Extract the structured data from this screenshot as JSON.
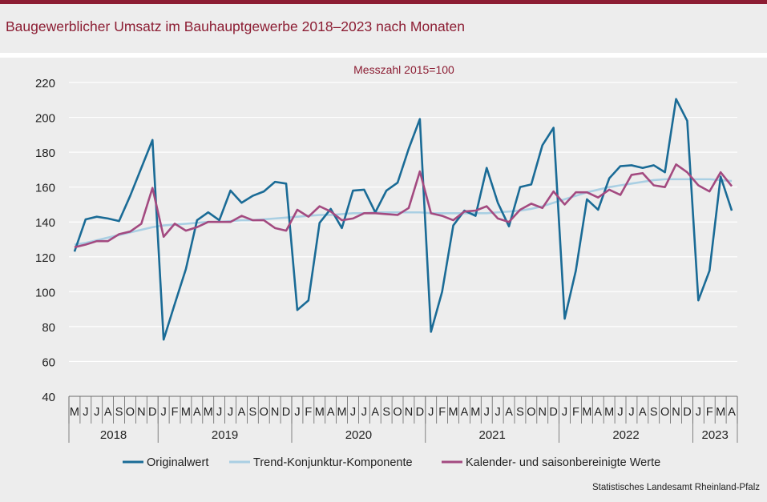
{
  "title": "Baugewerblicher Umsatz im Bauhauptgewerbe 2018–2023 nach Monaten",
  "source": "Statistisches Landesamt Rheinland-Pfalz",
  "colors": {
    "accent": "#8c1d33",
    "series": [
      "#1a6b96",
      "#a9cfe3",
      "#a34a80"
    ]
  },
  "chart_data": {
    "type": "line",
    "subtitle": "Messzahl 2015=100",
    "xlabel": "",
    "ylabel": "",
    "ylim": [
      40,
      220
    ],
    "yticks": [
      40,
      60,
      80,
      100,
      120,
      140,
      160,
      180,
      200,
      220
    ],
    "grid": true,
    "legend_position": "bottom",
    "month_labels": [
      "M",
      "J",
      "J",
      "A",
      "S",
      "O",
      "N",
      "D",
      "J",
      "F",
      "M",
      "A",
      "M",
      "J",
      "J",
      "A",
      "S",
      "O",
      "N",
      "D",
      "J",
      "F",
      "M",
      "A",
      "M",
      "J",
      "J",
      "A",
      "S",
      "O",
      "N",
      "D",
      "J",
      "F",
      "M",
      "A",
      "M",
      "J",
      "J",
      "A",
      "S",
      "O",
      "N",
      "D",
      "J",
      "F",
      "M",
      "A",
      "M",
      "J",
      "J",
      "A",
      "S",
      "O",
      "N",
      "D",
      "J",
      "F",
      "M",
      "A"
    ],
    "year_groups": [
      {
        "label": "2018",
        "count": 8
      },
      {
        "label": "2019",
        "count": 12
      },
      {
        "label": "2020",
        "count": 12
      },
      {
        "label": "2021",
        "count": 12
      },
      {
        "label": "2022",
        "count": 12
      },
      {
        "label": "2023",
        "count": 4
      }
    ],
    "series": [
      {
        "name": "Originalwert",
        "values": [
          123,
          141.5,
          143,
          142,
          140.5,
          155,
          171,
          187,
          72.5,
          93,
          113,
          141,
          145.5,
          141,
          158,
          151,
          155,
          157.5,
          163,
          162,
          89.5,
          95,
          139.5,
          147.5,
          136.5,
          158,
          158.5,
          145.5,
          158,
          162.5,
          182,
          199,
          77,
          100,
          138,
          146.5,
          143.5,
          171,
          151,
          137.5,
          160,
          161.5,
          184,
          194,
          84.5,
          112,
          153,
          147,
          165,
          172,
          172.5,
          171,
          172.5,
          168.5,
          210.5,
          198,
          95,
          112,
          166,
          146.5
        ]
      },
      {
        "name": "Trend-Konjunktur-Komponente",
        "values": [
          127,
          128,
          129.5,
          131,
          132.5,
          134,
          135.5,
          137,
          138,
          138.5,
          139,
          139.5,
          140,
          140,
          140.5,
          141,
          141,
          141.5,
          142,
          142.5,
          143,
          143.5,
          144,
          144,
          144.5,
          145,
          145,
          145.5,
          145.5,
          145.5,
          145.5,
          145.5,
          145,
          145,
          145,
          145,
          145,
          145,
          145.5,
          146,
          146.5,
          147.5,
          149,
          151,
          153,
          155,
          157,
          158.5,
          160,
          161,
          162,
          163,
          164,
          164.5,
          164.5,
          164.5,
          164.5,
          164.5,
          164,
          163.5
        ]
      },
      {
        "name": "Kalender- und saisonbereinigte Werte",
        "values": [
          125.5,
          127,
          129,
          129,
          133,
          134.5,
          139,
          159.5,
          131.5,
          139,
          135,
          137,
          140,
          140,
          140,
          143.5,
          141,
          141,
          136.5,
          135,
          147,
          143,
          149,
          146,
          141,
          142,
          145,
          145,
          144.5,
          144,
          148,
          169,
          145,
          143.5,
          141,
          146,
          146.5,
          149,
          142,
          140,
          147,
          150.5,
          148,
          157.5,
          150,
          157,
          157,
          154,
          158.5,
          155.5,
          167,
          168,
          161,
          160,
          173,
          168.5,
          161,
          157.5,
          168.5,
          160.5
        ]
      }
    ]
  }
}
